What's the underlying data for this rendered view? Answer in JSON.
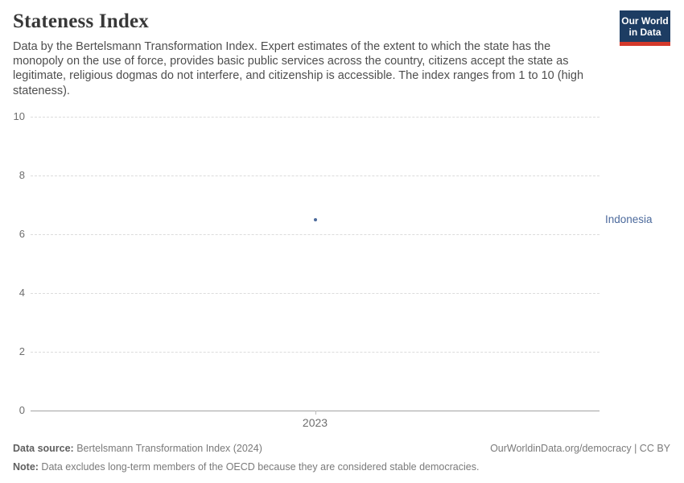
{
  "header": {
    "title": "Stateness Index",
    "subtitle": "Data by the Bertelsmann Transformation Index. Expert estimates of the extent to which the state has the monopoly on the use of force, provides basic public services across the country, citizens accept the state as legitimate, religious dogmas do not interfere, and citizenship is accessible. The index ranges from 1 to 10 (high stateness).",
    "logo": {
      "line1": "Our World",
      "line2": "in Data"
    }
  },
  "chart_data": {
    "type": "scatter",
    "title": "Stateness Index",
    "x": [
      2023
    ],
    "series": [
      {
        "name": "Indonesia",
        "values": [
          6.5
        ]
      }
    ],
    "xticks": [
      "2023"
    ],
    "yticks": [
      0,
      2,
      4,
      6,
      8,
      10
    ],
    "ylim": [
      0,
      10
    ],
    "xlabel": "",
    "ylabel": "",
    "grid": "horizontal-dashed",
    "legend_position": "right-entity-label"
  },
  "footer": {
    "source_label": "Data source:",
    "source_value": " Bertelsmann Transformation Index (2024)",
    "url": "OurWorldinData.org/democracy",
    "license": " | CC BY",
    "note_label": "Note:",
    "note_value": " Data excludes long-term members of the OECD because they are considered stable democracies."
  },
  "colors": {
    "accent_blue": "#4c6a9c",
    "logo_background": "#1d3d63",
    "logo_red": "#d4392b",
    "gridline": "#dcdcdc",
    "axis_line": "#a3a3a3",
    "tick_text": "#6e6e6e"
  }
}
